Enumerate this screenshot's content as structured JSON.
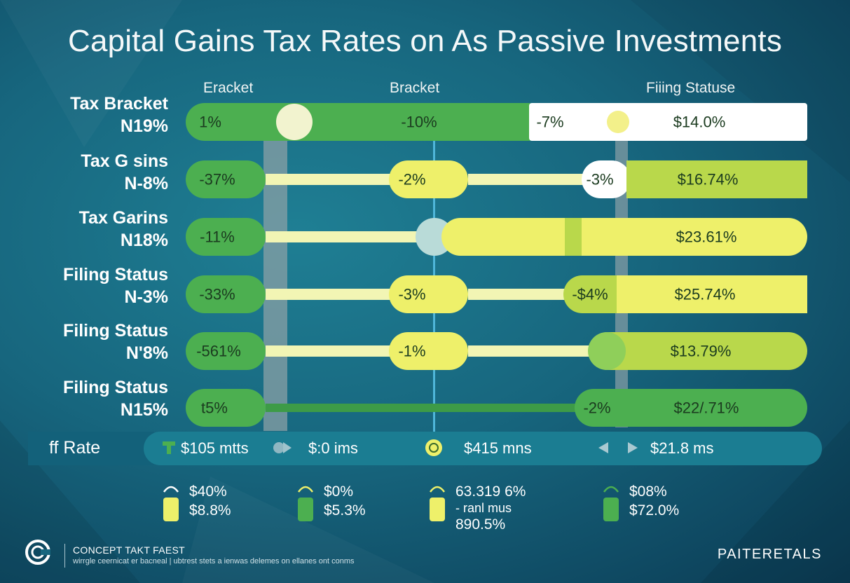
{
  "title": "Capital Gains Tax Rates on As Passive Investments",
  "colors": {
    "green": "#4caf50",
    "dark_green": "#3d9b47",
    "lime": "#b9d84b",
    "yellow": "#eef06a",
    "pale_yellow": "#f2f5b4",
    "white": "#ffffff",
    "background": "#17667e",
    "guide_gray": "#8aa0a6",
    "guide_blue": "#4fb6d9"
  },
  "chart_data": {
    "type": "table",
    "column_headers": [
      "Eracket",
      "Bracket",
      "Fiiing Statuse"
    ],
    "rows": [
      {
        "label": "Tax Bracket",
        "sublabel": "N19%",
        "values": [
          "1%",
          "-10%",
          "-7%",
          "$14.0%"
        ]
      },
      {
        "label": "Tax G  sins",
        "sublabel": "N-8%",
        "values": [
          "-37%",
          "-2%",
          "-3%",
          "$16.74%"
        ]
      },
      {
        "label": "Tax Garins",
        "sublabel": "N18%",
        "values": [
          "-11%",
          "",
          "",
          "$23.61%"
        ]
      },
      {
        "label": "Filing Status",
        "sublabel": "N-3%",
        "values": [
          "-33%",
          "-3%",
          "-$4%",
          "$25.74%"
        ]
      },
      {
        "label": "Filing Status",
        "sublabel": "N'8%",
        "values": [
          "-561%",
          "-1%",
          "",
          "$13.79%"
        ]
      },
      {
        "label": "Filing Status",
        "sublabel": "N15%",
        "values": [
          "t5%",
          "",
          "-2%",
          "$22/.71%"
        ]
      }
    ]
  },
  "rate_bar": {
    "label": "ff Rate",
    "items": [
      {
        "text": "$105 mtts",
        "icon": "tree-icon"
      },
      {
        "text": "$:0 ims",
        "icon": "play-icon"
      },
      {
        "text": "$415 mns",
        "icon": "coin-icon"
      },
      {
        "text": "$21.8 ms",
        "icon": "arrows-icon"
      }
    ]
  },
  "bottom_items": [
    {
      "lines": [
        "$40%",
        "$8.8%"
      ],
      "icon_color": "#eef06a"
    },
    {
      "lines": [
        "$0%",
        "$5.3%"
      ],
      "icon_color": "#4caf50"
    },
    {
      "lines": [
        "63.319 6%",
        "- ranl mus",
        "890.5%"
      ],
      "icon_color": "#eef06a"
    },
    {
      "lines": [
        "$08%",
        "$72.0%"
      ],
      "icon_color": "#4caf50"
    }
  ],
  "footer": {
    "title": "CONCEPT TAKT FAEST",
    "tagline": "wirrgle ceernicat er bacneal | ubtrest stets a ienwas delemes on ellanes ont conms",
    "brand": "PAITERETALS"
  }
}
